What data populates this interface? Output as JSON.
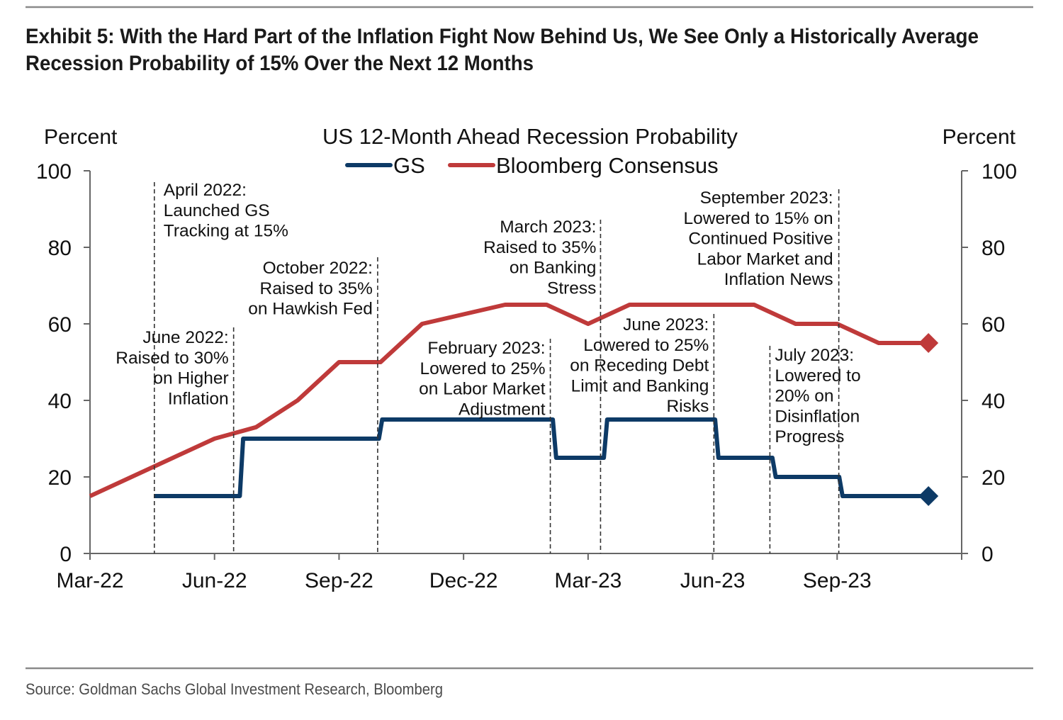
{
  "exhibit": {
    "title_lines": [
      "Exhibit 5: With the Hard Part of the Inflation Fight Now Behind Us, We See Only a Historically Average",
      "Recession Probability of 15% Over the Next 12 Months"
    ],
    "source": "Source: Goldman Sachs Global Investment Research, Bloomberg"
  },
  "chart_data": {
    "type": "line",
    "title": "US 12-Month Ahead Recession Probability",
    "xlabel": "",
    "ylabel_left": "Percent",
    "ylabel_right": "Percent",
    "ylim": [
      0,
      100
    ],
    "yticks": [
      0,
      20,
      40,
      60,
      80,
      100
    ],
    "x_unit": "months since Mar-22",
    "xlim": [
      0,
      21
    ],
    "xticks": [
      {
        "x": 0,
        "label": "Mar-22"
      },
      {
        "x": 3,
        "label": "Jun-22"
      },
      {
        "x": 6,
        "label": "Sep-22"
      },
      {
        "x": 9,
        "label": "Dec-22"
      },
      {
        "x": 12,
        "label": "Mar-23"
      },
      {
        "x": 15,
        "label": "Jun-23"
      },
      {
        "x": 18,
        "label": "Sep-23"
      }
    ],
    "grid": false,
    "legend": {
      "position": "top-center",
      "entries": [
        {
          "label": "GS",
          "series": 0
        },
        {
          "label": "Bloomberg Consensus",
          "series": 1
        }
      ]
    },
    "series": [
      {
        "name": "GS",
        "color": "#0d3a66",
        "style": "step",
        "end_marker": "diamond",
        "points": [
          [
            1.55,
            15
          ],
          [
            3.65,
            30
          ],
          [
            7.0,
            35
          ],
          [
            11.19,
            25
          ],
          [
            12.42,
            35
          ],
          [
            15.1,
            25
          ],
          [
            16.48,
            20
          ],
          [
            18.09,
            15
          ],
          [
            20.2,
            15
          ]
        ]
      },
      {
        "name": "Bloomberg Consensus",
        "color": "#bf3a3a",
        "style": "line",
        "end_marker": "diamond",
        "points": [
          [
            0,
            15
          ],
          [
            1,
            20
          ],
          [
            2,
            25
          ],
          [
            3,
            30
          ],
          [
            4,
            33
          ],
          [
            5,
            40
          ],
          [
            6,
            50
          ],
          [
            7,
            50
          ],
          [
            8,
            60
          ],
          [
            9,
            62.5
          ],
          [
            10,
            65
          ],
          [
            11,
            65
          ],
          [
            12,
            60
          ],
          [
            13,
            65
          ],
          [
            14,
            65
          ],
          [
            15,
            65
          ],
          [
            16,
            65
          ],
          [
            17,
            60
          ],
          [
            18,
            60
          ],
          [
            19,
            55
          ],
          [
            20.2,
            55
          ]
        ]
      }
    ],
    "annotations": [
      {
        "x": 1.55,
        "lines": [
          "April 2022:",
          "Launched GS",
          "Tracking at 15%"
        ]
      },
      {
        "x": 3.46,
        "lines": [
          "June 2022:",
          "Raised to 30%",
          "on Higher",
          "Inflation"
        ]
      },
      {
        "x": 6.93,
        "lines": [
          "October 2022:",
          "Raised to 35%",
          "on Hawkish Fed"
        ]
      },
      {
        "x": 11.09,
        "lines": [
          "February 2023:",
          "Lowered to 25%",
          "on Labor Market",
          "Adjustment"
        ]
      },
      {
        "x": 12.3,
        "lines": [
          "March 2023:",
          "Raised to 35%",
          "on Banking",
          "Stress"
        ]
      },
      {
        "x": 15.03,
        "lines": [
          "June 2023:",
          "Lowered to 25%",
          "on Receding Debt",
          "Limit and Banking",
          "Risks"
        ]
      },
      {
        "x": 16.38,
        "lines": [
          "July 2023:",
          "Lowered to",
          "20% on",
          "Disinflation",
          "Progress"
        ]
      },
      {
        "x": 18.04,
        "lines": [
          "September 2023:",
          "Lowered to 15% on",
          "Continued Positive",
          "Labor Market and",
          "Inflation News"
        ]
      }
    ]
  }
}
